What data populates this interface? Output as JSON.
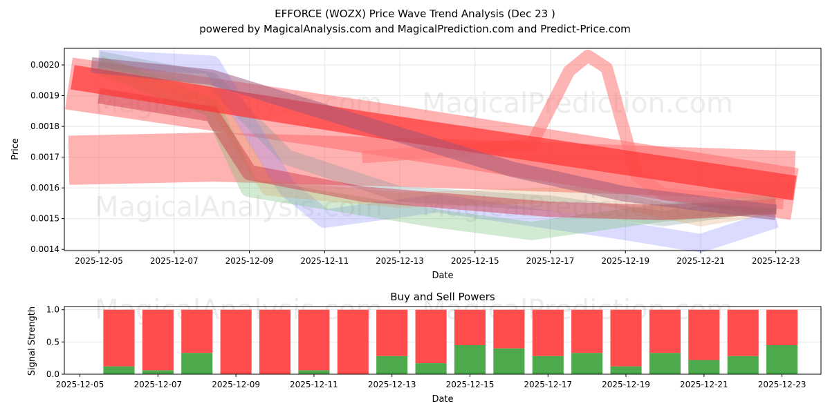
{
  "chart_data": [
    {
      "type": "line",
      "title_line1": "EFFORCE (WOZX) Price Wave Trend Analysis (Dec 23 )",
      "title_line2": "powered by MagicalAnalysis.com and MagicalPrediction.com and Predict-Price.com",
      "xlabel": "Date",
      "ylabel": "Price",
      "x_unit": "day of Dec 2025",
      "xlim": [
        4.08,
        24.2
      ],
      "ylim": [
        0.001396,
        0.002054
      ],
      "x_ticks": [
        {
          "v": 5,
          "label": "2025-12-05"
        },
        {
          "v": 7,
          "label": "2025-12-07"
        },
        {
          "v": 9,
          "label": "2025-12-09"
        },
        {
          "v": 11,
          "label": "2025-12-11"
        },
        {
          "v": 13,
          "label": "2025-12-13"
        },
        {
          "v": 15,
          "label": "2025-12-15"
        },
        {
          "v": 17,
          "label": "2025-12-17"
        },
        {
          "v": 19,
          "label": "2025-12-19"
        },
        {
          "v": 21,
          "label": "2025-12-21"
        },
        {
          "v": 23,
          "label": "2025-12-23"
        }
      ],
      "y_ticks": [
        {
          "v": 0.0014,
          "label": "0.0014"
        },
        {
          "v": 0.0015,
          "label": "0.0015"
        },
        {
          "v": 0.0016,
          "label": "0.0016"
        },
        {
          "v": 0.0017,
          "label": "0.0017"
        },
        {
          "v": 0.0018,
          "label": "0.0018"
        },
        {
          "v": 0.0019,
          "label": "0.0019"
        },
        {
          "v": 0.002,
          "label": "0.0020"
        }
      ],
      "grid": true,
      "watermarks": [
        "MagicalAnalysis.com",
        "MagicalPrediction.com"
      ],
      "series": [
        {
          "name": "wave-light-red-wide",
          "color": "#ff6666",
          "opacity": 0.5,
          "width": 0.00016,
          "points": [
            [
              4.2,
              0.00169
            ],
            [
              8,
              0.0017
            ],
            [
              14,
              0.00168
            ],
            [
              23.5,
              0.00164
            ]
          ]
        },
        {
          "name": "wave-red-upper",
          "color": "#ff6666",
          "opacity": 0.5,
          "width": 0.00017,
          "points": [
            [
              4.2,
              0.00194
            ],
            [
              12,
              0.0018
            ],
            [
              23.5,
              0.00158
            ]
          ]
        },
        {
          "name": "wave-blue",
          "color": "#8888ff",
          "opacity": 0.3,
          "width": 6e-05,
          "points": [
            [
              5,
              0.00202
            ],
            [
              8,
              0.002
            ],
            [
              10,
              0.0016
            ],
            [
              11,
              0.0015
            ],
            [
              14,
              0.00155
            ],
            [
              19,
              0.00146
            ],
            [
              21,
              0.00142
            ],
            [
              23,
              0.0015
            ]
          ]
        },
        {
          "name": "wave-green",
          "color": "#66bb66",
          "opacity": 0.3,
          "width": 6e-05,
          "points": [
            [
              5,
              0.002
            ],
            [
              8,
              0.00186
            ],
            [
              9,
              0.0016
            ],
            [
              14,
              0.0015
            ],
            [
              16.5,
              0.00146
            ],
            [
              20,
              0.00152
            ],
            [
              23,
              0.00155
            ]
          ]
        },
        {
          "name": "wave-gray",
          "color": "#779999",
          "opacity": 0.3,
          "width": 5e-05,
          "points": [
            [
              5,
              0.00202
            ],
            [
              8,
              0.00195
            ],
            [
              10,
              0.0017
            ],
            [
              13,
              0.00158
            ],
            [
              17,
              0.00155
            ],
            [
              20,
              0.0015
            ],
            [
              23,
              0.00155
            ]
          ]
        },
        {
          "name": "wave-orange",
          "color": "#dd9955",
          "opacity": 0.25,
          "width": 5e-05,
          "points": [
            [
              5,
              0.002
            ],
            [
              8,
              0.0019
            ],
            [
              9.5,
              0.0016
            ],
            [
              13,
              0.00156
            ],
            [
              18,
              0.00158
            ],
            [
              21,
              0.0015
            ],
            [
              23,
              0.00154
            ]
          ]
        },
        {
          "name": "wave-dark-red",
          "color": "#cc3344",
          "opacity": 0.45,
          "width": 5e-05,
          "points": [
            [
              5,
              0.0019
            ],
            [
              8,
              0.00184
            ],
            [
              9,
              0.00165
            ],
            [
              12,
              0.00158
            ],
            [
              14,
              0.00156
            ],
            [
              17,
              0.00153
            ],
            [
              20,
              0.00152
            ],
            [
              23,
              0.00154
            ]
          ]
        },
        {
          "name": "wave-red-peak",
          "color": "#ff7777",
          "opacity": 0.55,
          "width": 4e-05,
          "points": [
            [
              12,
              0.0017
            ],
            [
              16.5,
              0.00174
            ],
            [
              17.5,
              0.00198
            ],
            [
              18,
              0.00203
            ],
            [
              18.5,
              0.00199
            ],
            [
              19.3,
              0.00164
            ],
            [
              20,
              0.00158
            ],
            [
              23.2,
              0.00155
            ]
          ]
        },
        {
          "name": "wave-red-main",
          "color": "#ff3333",
          "opacity": 0.7,
          "width": 8e-05,
          "points": [
            [
              4.3,
              0.00196
            ],
            [
              12,
              0.00181
            ],
            [
              23.5,
              0.0016
            ]
          ]
        },
        {
          "name": "wave-purple",
          "color": "#995577",
          "opacity": 0.5,
          "width": 5e-05,
          "points": [
            [
              4.8,
              0.002
            ],
            [
              8,
              0.00196
            ],
            [
              12,
              0.00181
            ],
            [
              16,
              0.00166
            ],
            [
              19,
              0.00158
            ],
            [
              23,
              0.00152
            ]
          ]
        }
      ]
    },
    {
      "type": "bar",
      "stacked": true,
      "title": "Buy and Sell Powers",
      "xlabel": "Date",
      "ylabel": "Signal Strength",
      "xlim": [
        4.6,
        24.0
      ],
      "ylim": [
        0,
        1.05
      ],
      "x_ticks": [
        {
          "v": 5,
          "label": "2025-12-05"
        },
        {
          "v": 7,
          "label": "2025-12-07"
        },
        {
          "v": 9,
          "label": "2025-12-09"
        },
        {
          "v": 11,
          "label": "2025-12-11"
        },
        {
          "v": 13,
          "label": "2025-12-13"
        },
        {
          "v": 15,
          "label": "2025-12-15"
        },
        {
          "v": 17,
          "label": "2025-12-17"
        },
        {
          "v": 19,
          "label": "2025-12-19"
        },
        {
          "v": 21,
          "label": "2025-12-21"
        },
        {
          "v": 23,
          "label": "2025-12-23"
        }
      ],
      "y_ticks": [
        {
          "v": 0,
          "label": "0.0"
        },
        {
          "v": 0.5,
          "label": "0.5"
        },
        {
          "v": 1.0,
          "label": "1.0"
        }
      ],
      "categories": [
        6,
        7,
        8,
        9,
        10,
        11,
        12,
        13,
        14,
        15,
        16,
        17,
        18,
        19,
        20,
        21,
        22,
        23
      ],
      "buy_color": "#4caa4c",
      "sell_color": "#ff4c4c",
      "buy": [
        0.12,
        0.06,
        0.33,
        0,
        0,
        0.06,
        0,
        0.28,
        0.17,
        0.45,
        0.4,
        0.28,
        0.33,
        0.12,
        0.33,
        0.22,
        0.28,
        0.45
      ],
      "watermarks": [
        "MagicalAnalysis.com",
        "MagicalPrediction.com"
      ]
    }
  ]
}
